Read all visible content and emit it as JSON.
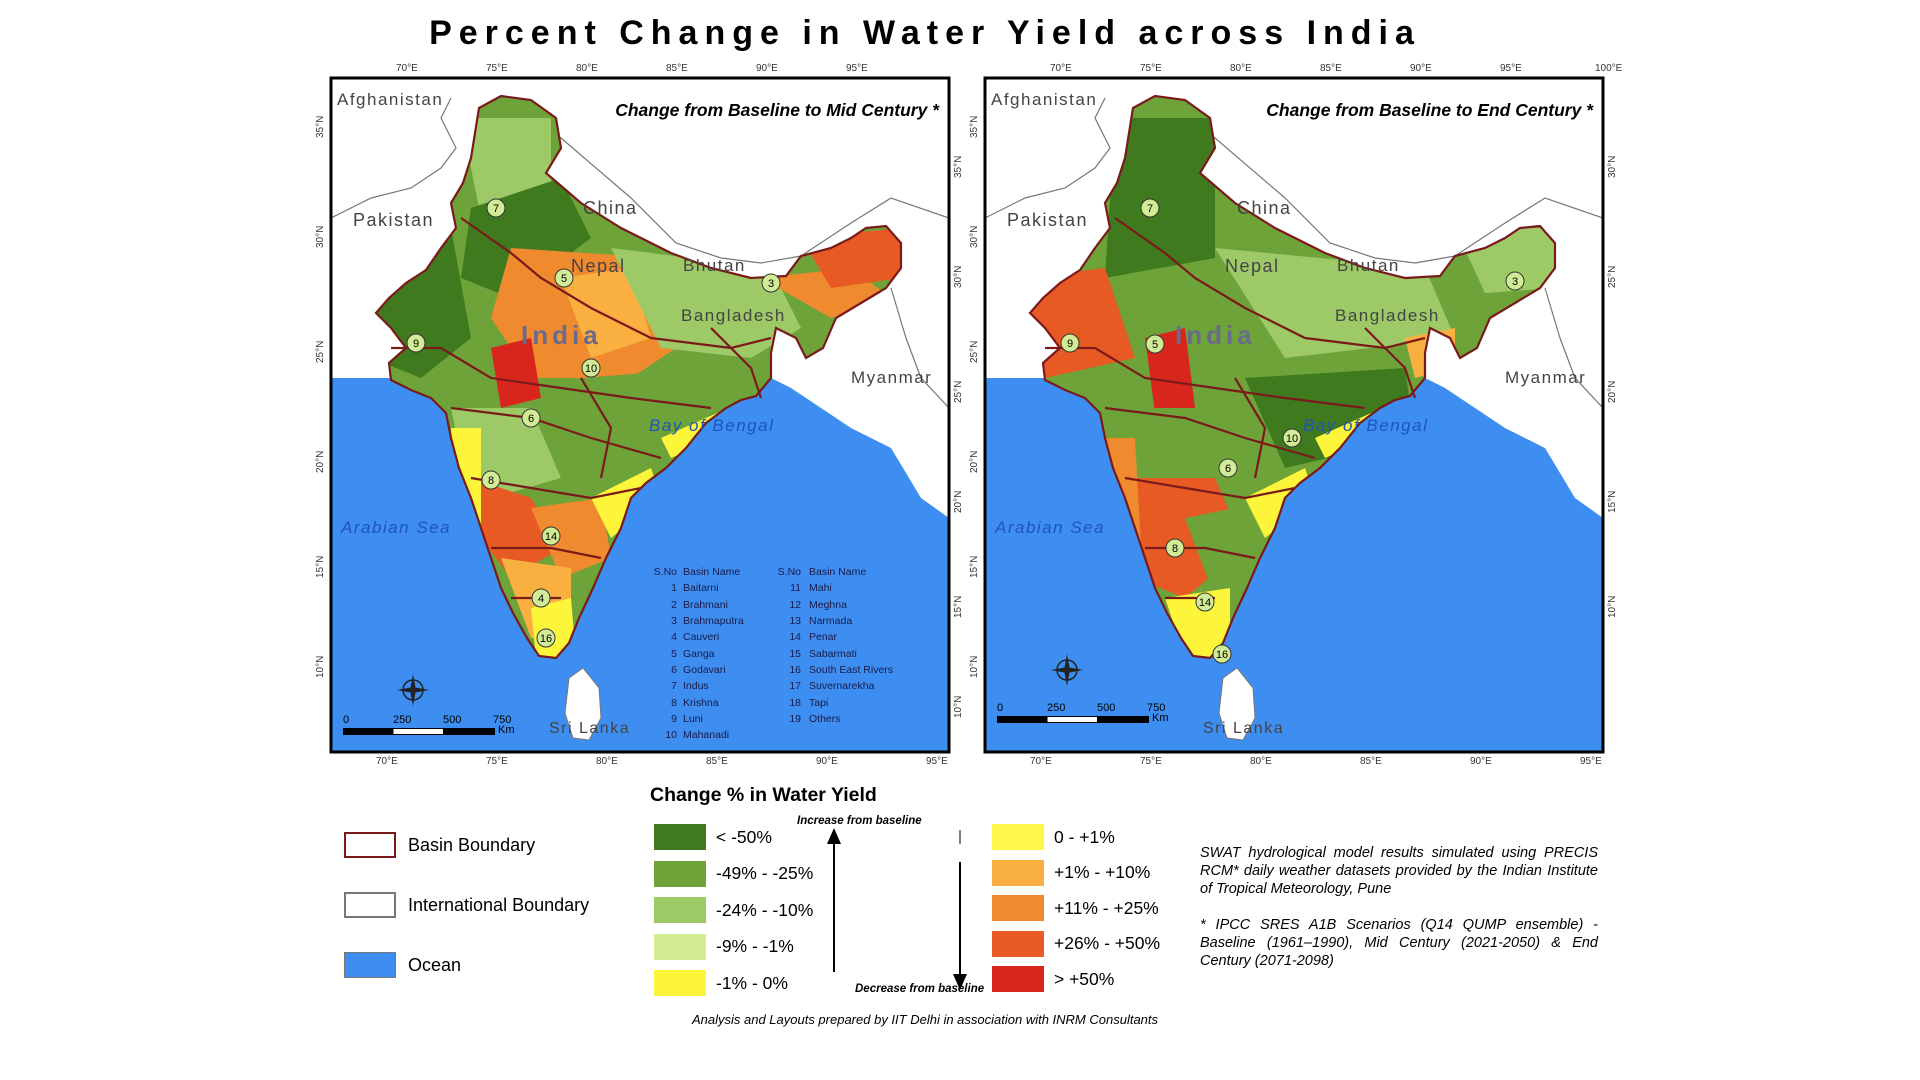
{
  "title": "Percent Change in Water Yield across India",
  "maps": [
    {
      "subtitle": "Change from Baseline to Mid Century *",
      "lon_top": [
        "70°E",
        "75°E",
        "80°E",
        "85°E",
        "90°E",
        "95°E"
      ],
      "lon_bottom": [
        "70°E",
        "75°E",
        "80°E",
        "85°E",
        "90°E",
        "95°E"
      ],
      "lat_left": [
        "35°N",
        "30°N",
        "25°N",
        "20°N",
        "15°N",
        "10°N"
      ],
      "lat_right": [
        "35°N",
        "30°N",
        "25°N",
        "20°N",
        "15°N",
        "10°N"
      ],
      "places": {
        "afghanistan": "Afghanistan",
        "pakistan": "Pakistan",
        "china": "China",
        "nepal": "Nepal",
        "bhutan": "Bhutan",
        "india": "India",
        "bangladesh": "Bangladesh",
        "myanmar": "Myanmar",
        "bay": "Bay of Bengal",
        "arabian": "Arabian Sea",
        "srilanka": "Sri Lanka"
      },
      "scale": {
        "labels": [
          "0",
          "250",
          "500",
          "750"
        ],
        "unit": "Km"
      }
    },
    {
      "subtitle": "Change from Baseline to End Century *",
      "lon_top": [
        "70°E",
        "75°E",
        "80°E",
        "85°E",
        "90°E",
        "95°E",
        "100°E"
      ],
      "lon_bottom": [
        "70°E",
        "75°E",
        "80°E",
        "85°E",
        "90°E",
        "95°E"
      ],
      "lat_left": [
        "35°N",
        "30°N",
        "25°N",
        "20°N",
        "15°N",
        "10°N"
      ],
      "lat_right": [
        "30°N",
        "25°N",
        "20°N",
        "15°N",
        "10°N"
      ],
      "places": {
        "afghanistan": "Afghanistan",
        "pakistan": "Pakistan",
        "china": "China",
        "nepal": "Nepal",
        "bhutan": "Bhutan",
        "india": "India",
        "bangladesh": "Bangladesh",
        "myanmar": "Myanmar",
        "bay": "Bay of Bengal",
        "arabian": "Arabian Sea",
        "srilanka": "Sri Lanka"
      },
      "scale": {
        "labels": [
          "0",
          "250",
          "500",
          "750"
        ],
        "unit": "Km"
      }
    }
  ],
  "basin_table": {
    "headers": [
      "S.No",
      "Basin Name",
      "S.No",
      "Basin Name"
    ],
    "rows": [
      [
        "1",
        "Baitarni",
        "11",
        "Mahi"
      ],
      [
        "2",
        "Brahmani",
        "12",
        "Meghna"
      ],
      [
        "3",
        "Brahmaputra",
        "13",
        "Narmada"
      ],
      [
        "4",
        "Cauveri",
        "14",
        "Penar"
      ],
      [
        "5",
        "Ganga",
        "15",
        "Sabarmati"
      ],
      [
        "6",
        "Godavari",
        "16",
        "South East Rivers"
      ],
      [
        "7",
        "Indus",
        "17",
        "Suvernarekha"
      ],
      [
        "8",
        "Krishna",
        "18",
        "Tapi"
      ],
      [
        "9",
        "Luni",
        "19",
        "Others"
      ],
      [
        "10",
        "Mahanadi",
        "",
        ""
      ]
    ]
  },
  "legend_layers": [
    {
      "label": "Basin Boundary",
      "fill": "#ffffff",
      "border": "#7a1a1a"
    },
    {
      "label": "International Boundary",
      "fill": "#ffffff",
      "border": "#777777"
    },
    {
      "label": "Ocean",
      "fill": "#3d8ef0",
      "border": "#777777"
    }
  ],
  "legend_title": "Change % in Water Yield",
  "classes_decrease": [
    {
      "label": "< -50%",
      "color": "#3f7a1e"
    },
    {
      "label": "-49% - -25%",
      "color": "#6ea33a"
    },
    {
      "label": "-24% - -10%",
      "color": "#9dc967"
    },
    {
      "label": "-9% - -1%",
      "color": "#d2ec96"
    },
    {
      "label": "-1% - 0%",
      "color": "#fcf53a"
    }
  ],
  "classes_increase": [
    {
      "label": "0 - +1%",
      "color": "#fdf64b"
    },
    {
      "label": "+1% - +10%",
      "color": "#f9b041"
    },
    {
      "label": "+11% - +25%",
      "color": "#f08a2e"
    },
    {
      "label": "+26% - +50%",
      "color": "#e85a23"
    },
    {
      "label": "> +50%",
      "color": "#d8261d"
    }
  ],
  "arrow_labels": {
    "up": "Increase from baseline",
    "down": "Decrease from baseline"
  },
  "notes": [
    "SWAT hydrological model results simulated using PRECIS RCM* daily weather datasets provided by the Indian Institute of Tropical Meteorology, Pune",
    "* IPCC SRES A1B Scenarios (Q14 QUMP ensemble) - Baseline (1961–1990), Mid Century (2021-2050) & End Century (2071-2098)"
  ],
  "footer": "Analysis and Layouts prepared by IIT Delhi in association with INRM Consultants"
}
